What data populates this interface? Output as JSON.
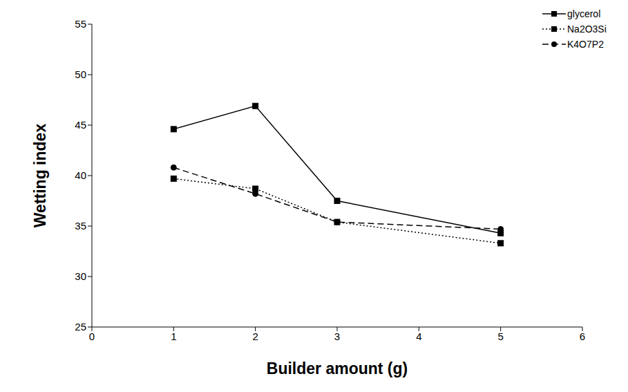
{
  "chart_data": {
    "type": "line",
    "x": [
      1,
      2,
      3,
      5
    ],
    "series": [
      {
        "name": "glycerol",
        "color": "#000000",
        "values": [
          44.6,
          46.9,
          37.5,
          34.3
        ],
        "marker": "square",
        "line_style": "solid"
      },
      {
        "name": "Na2O3Si",
        "color": "#000000",
        "values": [
          39.7,
          38.7,
          35.4,
          33.3
        ],
        "marker": "square",
        "line_style": "dotted"
      },
      {
        "name": "K4O7P2",
        "color": "#000000",
        "values": [
          40.8,
          38.2,
          35.4,
          34.7
        ],
        "marker": "circle",
        "line_style": "dashed"
      }
    ],
    "x_label": "Builder amount (g)",
    "y_label": "Wetting index",
    "xlim": [
      0,
      6
    ],
    "xticks": [
      0,
      1,
      2,
      3,
      4,
      5,
      6
    ],
    "ylim": [
      25,
      55
    ],
    "yticks": [
      25,
      30,
      35,
      40,
      45,
      50,
      55
    ],
    "legend": "upper right",
    "grid": false
  }
}
